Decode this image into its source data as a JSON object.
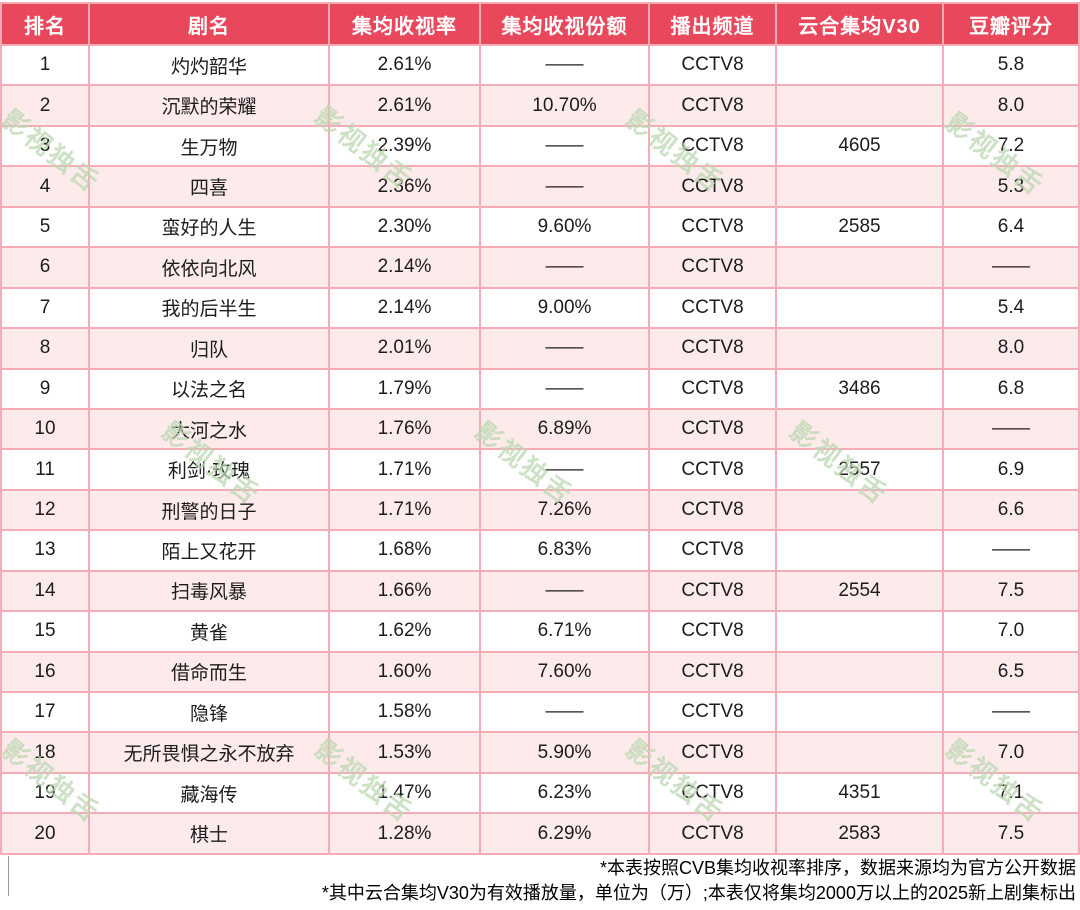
{
  "chart_data": {
    "type": "table",
    "columns": [
      "排名",
      "剧名",
      "集均收视率",
      "集均收视份额",
      "播出频道",
      "云合集均V30",
      "豆瓣评分"
    ],
    "rows": [
      [
        "1",
        "灼灼韶华",
        "2.61%",
        "——",
        "CCTV8",
        "",
        "5.8"
      ],
      [
        "2",
        "沉默的荣耀",
        "2.61%",
        "10.70%",
        "CCTV8",
        "",
        "8.0"
      ],
      [
        "3",
        "生万物",
        "2.39%",
        "——",
        "CCTV8",
        "4605",
        "7.2"
      ],
      [
        "4",
        "四喜",
        "2.36%",
        "——",
        "CCTV8",
        "",
        "5.3"
      ],
      [
        "5",
        "蛮好的人生",
        "2.30%",
        "9.60%",
        "CCTV8",
        "2585",
        "6.4"
      ],
      [
        "6",
        "依依向北风",
        "2.14%",
        "——",
        "CCTV8",
        "",
        "——"
      ],
      [
        "7",
        "我的后半生",
        "2.14%",
        "9.00%",
        "CCTV8",
        "",
        "5.4"
      ],
      [
        "8",
        "归队",
        "2.01%",
        "——",
        "CCTV8",
        "",
        "8.0"
      ],
      [
        "9",
        "以法之名",
        "1.79%",
        "——",
        "CCTV8",
        "3486",
        "6.8"
      ],
      [
        "10",
        "大河之水",
        "1.76%",
        "6.89%",
        "CCTV8",
        "",
        "——"
      ],
      [
        "11",
        "利剑·玫瑰",
        "1.71%",
        "——",
        "CCTV8",
        "2557",
        "6.9"
      ],
      [
        "12",
        "刑警的日子",
        "1.71%",
        "7.26%",
        "CCTV8",
        "",
        "6.6"
      ],
      [
        "13",
        "陌上又花开",
        "1.68%",
        "6.83%",
        "CCTV8",
        "",
        "——"
      ],
      [
        "14",
        "扫毒风暴",
        "1.66%",
        "——",
        "CCTV8",
        "2554",
        "7.5"
      ],
      [
        "15",
        "黄雀",
        "1.62%",
        "6.71%",
        "CCTV8",
        "",
        "7.0"
      ],
      [
        "16",
        "借命而生",
        "1.60%",
        "7.60%",
        "CCTV8",
        "",
        "6.5"
      ],
      [
        "17",
        "隐锋",
        "1.58%",
        "——",
        "CCTV8",
        "",
        "——"
      ],
      [
        "18",
        "无所畏惧之永不放弃",
        "1.53%",
        "5.90%",
        "CCTV8",
        "",
        "7.0"
      ],
      [
        "19",
        "藏海传",
        "1.47%",
        "6.23%",
        "CCTV8",
        "4351",
        "7.1"
      ],
      [
        "20",
        "棋士",
        "1.28%",
        "6.29%",
        "CCTV8",
        "2583",
        "7.5"
      ]
    ],
    "notes": [
      "*本表按照CVB集均收视率排序，数据来源均为官方公开数据",
      "*其中云合集均V30为有效播放量，单位为（万）;本表仅将集均2000万以上的2025新上剧集标出"
    ],
    "title": "",
    "legend_position": "none",
    "grid": true
  },
  "watermark": {
    "text": "影视独舌"
  },
  "colors": {
    "header_bg": "#e9485c",
    "header_text": "#ffffff",
    "row_bg": "#ffffff",
    "row_alt_bg": "#fdebec",
    "border": "#f5acb7",
    "text": "#1c1c1c",
    "watermark": "#bcd8b2"
  }
}
